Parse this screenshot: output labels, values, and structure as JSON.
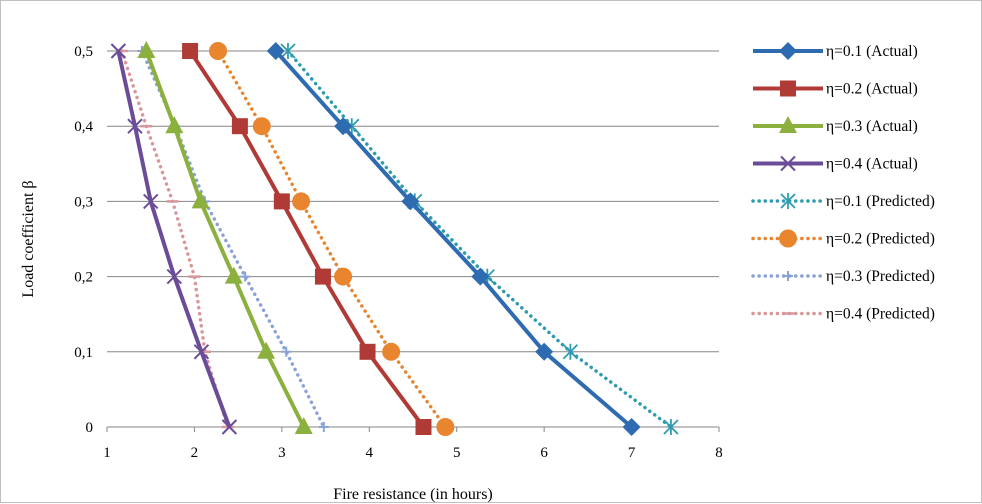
{
  "chart_data": {
    "type": "line",
    "title": "",
    "xlabel": "Fire resistance (in hours)",
    "ylabel": "Load coefficient  β",
    "xlim": [
      1,
      8
    ],
    "ylim": [
      0,
      0.5
    ],
    "x_ticks": [
      "1",
      "2",
      "3",
      "4",
      "5",
      "6",
      "7",
      "8"
    ],
    "y_ticks": [
      "0",
      "0,1",
      "0,2",
      "0,3",
      "0,4",
      "0,5"
    ],
    "grid": "horizontal",
    "legend_position": "right",
    "series": [
      {
        "name": "η=0.1 (Actual)",
        "color": "#2e6bb0",
        "dash": "solid",
        "marker": "diamond",
        "points": [
          [
            2.93,
            0.5
          ],
          [
            3.7,
            0.4
          ],
          [
            4.47,
            0.3
          ],
          [
            5.27,
            0.2
          ],
          [
            6.0,
            0.1
          ],
          [
            7.0,
            0.0
          ]
        ]
      },
      {
        "name": "η=0.2 (Actual)",
        "color": "#b03a35",
        "dash": "solid",
        "marker": "square",
        "points": [
          [
            1.95,
            0.5
          ],
          [
            2.52,
            0.4
          ],
          [
            3.0,
            0.3
          ],
          [
            3.47,
            0.2
          ],
          [
            3.98,
            0.1
          ],
          [
            4.62,
            0.0
          ]
        ]
      },
      {
        "name": "η=0.3 (Actual)",
        "color": "#8cb03e",
        "dash": "solid",
        "marker": "triangle",
        "points": [
          [
            1.45,
            0.5
          ],
          [
            1.77,
            0.4
          ],
          [
            2.07,
            0.3
          ],
          [
            2.45,
            0.2
          ],
          [
            2.82,
            0.1
          ],
          [
            3.25,
            0.0
          ]
        ]
      },
      {
        "name": "η=0.4 (Actual)",
        "color": "#6b4c98",
        "dash": "solid",
        "marker": "x",
        "points": [
          [
            1.13,
            0.5
          ],
          [
            1.32,
            0.4
          ],
          [
            1.5,
            0.3
          ],
          [
            1.77,
            0.2
          ],
          [
            2.08,
            0.1
          ],
          [
            2.4,
            0.0
          ]
        ]
      },
      {
        "name": "η=0.1 (Predicted)",
        "color": "#2e9cb0",
        "dash": "dotted",
        "marker": "asterisk",
        "points": [
          [
            3.07,
            0.5
          ],
          [
            3.8,
            0.4
          ],
          [
            4.52,
            0.3
          ],
          [
            5.35,
            0.2
          ],
          [
            6.3,
            0.1
          ],
          [
            7.45,
            0.0
          ]
        ]
      },
      {
        "name": "η=0.2 (Predicted)",
        "color": "#e8852e",
        "dash": "dotted",
        "marker": "circle",
        "points": [
          [
            2.27,
            0.5
          ],
          [
            2.77,
            0.4
          ],
          [
            3.22,
            0.3
          ],
          [
            3.7,
            0.2
          ],
          [
            4.25,
            0.1
          ],
          [
            4.87,
            0.0
          ]
        ]
      },
      {
        "name": "η=0.3 (Predicted)",
        "color": "#8aa2d6",
        "dash": "dotted",
        "marker": "plus",
        "points": [
          [
            1.4,
            0.5
          ],
          [
            1.78,
            0.4
          ],
          [
            2.12,
            0.3
          ],
          [
            2.58,
            0.2
          ],
          [
            3.05,
            0.1
          ],
          [
            3.48,
            0.0
          ]
        ]
      },
      {
        "name": "η=0.4 (Predicted)",
        "color": "#d9959a",
        "dash": "dotted",
        "marker": "dash",
        "points": [
          [
            1.17,
            0.5
          ],
          [
            1.45,
            0.4
          ],
          [
            1.75,
            0.3
          ],
          [
            2.0,
            0.2
          ],
          [
            2.12,
            0.1
          ],
          [
            2.38,
            0.0
          ]
        ]
      }
    ]
  }
}
